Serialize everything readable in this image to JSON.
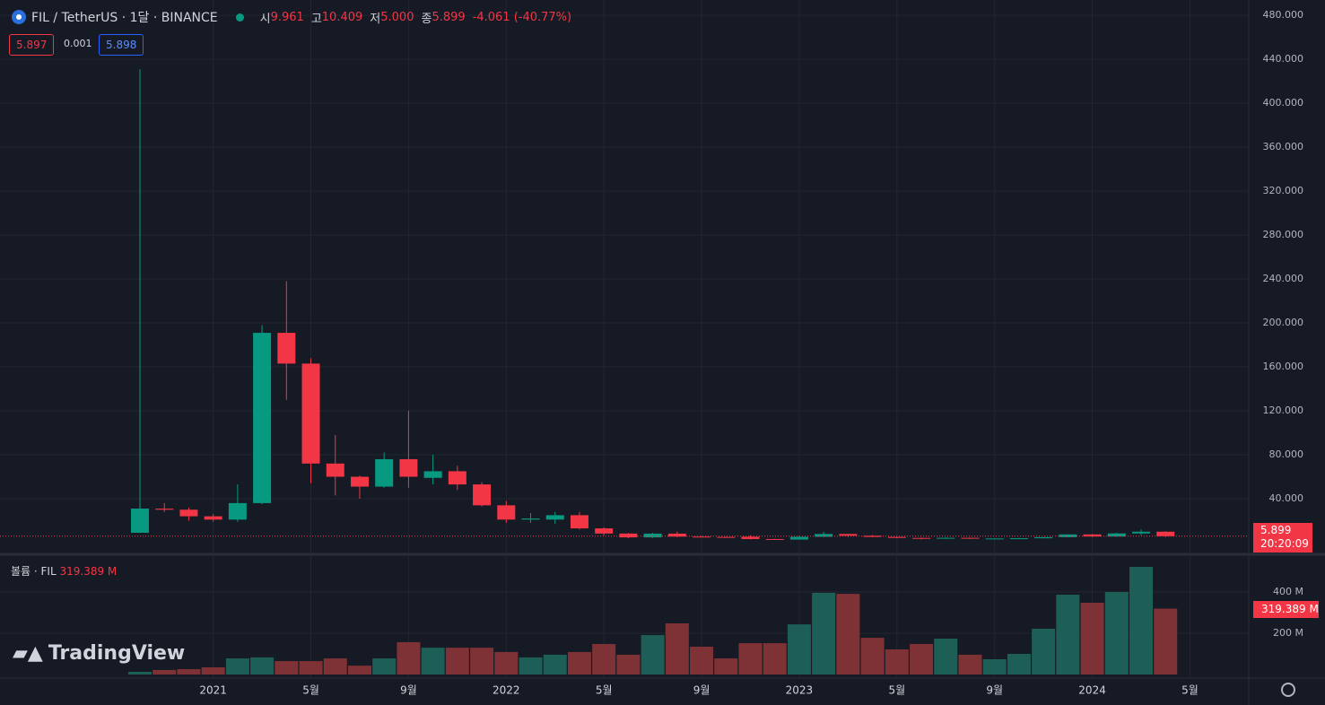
{
  "header": {
    "symbol": "FIL / TetherUS · 1달 · BINANCE",
    "open_label": "시",
    "open": "9.961",
    "high_label": "고",
    "high": "10.409",
    "low_label": "저",
    "low": "5.000",
    "close_label": "종",
    "close": "5.899",
    "change": "-4.061 (-40.77%)",
    "bid": "5.897",
    "spread": "0.001",
    "ask": "5.898",
    "volume_title": "볼륨 · FIL",
    "volume_value": "319.389 M",
    "price_tag": "5.899",
    "countdown": "20:20:09",
    "volume_tag": "319.389 M",
    "logo": "TradingView"
  },
  "chart_data": [
    {
      "type": "candlestick",
      "up_color": "#089981",
      "down_color": "#f23645",
      "open": [
        9,
        31,
        30,
        24,
        21,
        36,
        191,
        163,
        72,
        60,
        51,
        76,
        59,
        65,
        53,
        34,
        21,
        21,
        25,
        13,
        8.3,
        4.8,
        8.2,
        5.5,
        5.2,
        5.4,
        3.3,
        2.8,
        5.3,
        7.9,
        6.3,
        5.2,
        4.3,
        3.8,
        4.4,
        3.7,
        3.8,
        4.0,
        5.0,
        7.5,
        5.6,
        8.4,
        9.961
      ],
      "high": [
        431,
        36,
        32,
        26,
        53,
        198,
        238,
        168,
        98,
        61,
        82,
        120,
        80,
        70,
        55,
        38,
        27,
        28,
        28,
        14,
        8.6,
        9,
        10,
        6,
        5.6,
        6.5,
        3.6,
        5.8,
        10,
        8,
        7,
        5.5,
        4.6,
        4.8,
        4.5,
        3.9,
        4.2,
        5.1,
        7.6,
        7.8,
        8.9,
        11.9,
        10.409
      ],
      "low": [
        9,
        28,
        20,
        19,
        19,
        35,
        130,
        54,
        43,
        40,
        50,
        50,
        53,
        48,
        33,
        18,
        18,
        17,
        12,
        6.5,
        4,
        4.2,
        5,
        5,
        4.6,
        2.9,
        2.6,
        2.8,
        5,
        5,
        5,
        4,
        3,
        3.4,
        3.3,
        3.1,
        3.5,
        3.8,
        4.8,
        5.0,
        5.5,
        6.8,
        5.0
      ],
      "close": [
        31,
        30,
        24,
        21,
        36,
        191,
        163,
        72,
        60,
        51,
        76,
        60,
        65,
        53,
        34,
        21,
        22,
        25,
        13,
        8.3,
        4.8,
        8.2,
        5.5,
        5.2,
        4.9,
        3.3,
        2.8,
        5.3,
        7.9,
        6.3,
        5.2,
        4.3,
        3.8,
        4.4,
        3.7,
        3.8,
        4.0,
        5.0,
        7.5,
        5.6,
        8.4,
        9.96,
        5.899
      ],
      "last": 5.899,
      "ylim": [
        -9.8,
        494
      ],
      "yticks": [
        {
          "value": 40,
          "label": "40.000"
        },
        {
          "value": 80,
          "label": "80.000"
        },
        {
          "value": 120,
          "label": "120.000"
        },
        {
          "value": 160,
          "label": "160.000"
        },
        {
          "value": 200,
          "label": "200.000"
        },
        {
          "value": 240,
          "label": "240.000"
        },
        {
          "value": 280,
          "label": "280.000"
        },
        {
          "value": 320,
          "label": "320.000"
        },
        {
          "value": 360,
          "label": "360.000"
        },
        {
          "value": 400,
          "label": "400.000"
        },
        {
          "value": 440,
          "label": "440.000"
        },
        {
          "value": 480,
          "label": "480.000"
        }
      ],
      "xticks": [
        {
          "value": 3,
          "label": "2021"
        },
        {
          "value": 7,
          "label": "5월"
        },
        {
          "value": 11,
          "label": "9월"
        },
        {
          "value": 15,
          "label": "2022"
        },
        {
          "value": 19,
          "label": "5월"
        },
        {
          "value": 23,
          "label": "9월"
        },
        {
          "value": 27,
          "label": "2023"
        },
        {
          "value": 31,
          "label": "5월"
        },
        {
          "value": 35,
          "label": "9월"
        },
        {
          "value": 39,
          "label": "2024"
        },
        {
          "value": 43,
          "label": "5월"
        }
      ],
      "grid": true
    },
    {
      "type": "bar",
      "up_color": "#1d5f57",
      "down_color": "#7e3235",
      "values": [
        13,
        22,
        26,
        35,
        78,
        83,
        65,
        65,
        78,
        43,
        78,
        157,
        130,
        130,
        130,
        109,
        83,
        96,
        109,
        148,
        96,
        191,
        248,
        135,
        78,
        152,
        152,
        243,
        396,
        391,
        178,
        122,
        148,
        174,
        96,
        74,
        100,
        222,
        387,
        348,
        400,
        522,
        319.389
      ],
      "ylim": [
        -13,
        574
      ],
      "yticks": [
        {
          "value": 200,
          "label": "200 M"
        },
        {
          "value": 400,
          "label": "400 M"
        }
      ],
      "grid": true
    }
  ]
}
